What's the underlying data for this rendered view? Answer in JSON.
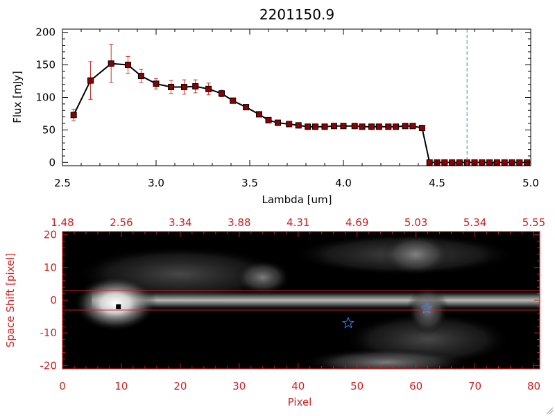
{
  "title": "2201150.9",
  "colors": {
    "line": "#000000",
    "error_bar": "#c0392b",
    "marker_fill": "#8b0000",
    "accent_red": "#cc2222",
    "dashed_line": "#3a8fb7",
    "star": "#2e86ff",
    "image_bg": "#000000"
  },
  "chart_data": [
    {
      "type": "line",
      "title": "2201150.9",
      "xlabel": "Lambda [um]",
      "ylabel": "Flux [mJy]",
      "xlim": [
        2.5,
        5.0
      ],
      "ylim": [
        -5,
        205
      ],
      "x_ticks": [
        "2.5",
        "3.0",
        "3.5",
        "4.0",
        "4.5",
        "5.0"
      ],
      "y_ticks": [
        "0",
        "50",
        "100",
        "150",
        "200"
      ],
      "vline_x": 4.66,
      "series": [
        {
          "x": [
            2.56,
            2.65,
            2.76,
            2.85,
            2.92,
            3.0,
            3.08,
            3.15,
            3.21,
            3.28,
            3.35,
            3.41,
            3.48,
            3.55,
            3.6,
            3.65,
            3.71,
            3.76,
            3.81,
            3.85,
            3.9,
            3.95,
            4.0,
            4.06,
            4.1,
            4.15,
            4.19,
            4.24,
            4.28,
            4.33,
            4.37,
            4.42,
            4.46,
            4.5,
            4.54,
            4.58,
            4.62,
            4.66,
            4.7,
            4.74,
            4.78,
            4.82,
            4.86,
            4.9,
            4.94,
            4.98
          ],
          "y": [
            73,
            126,
            152,
            150,
            133,
            121,
            116,
            116,
            117,
            113,
            106,
            95,
            85,
            74,
            65,
            61,
            59,
            57,
            55,
            55,
            55,
            56,
            56,
            56,
            55,
            55,
            55,
            55,
            55,
            56,
            56,
            53,
            0,
            0,
            0,
            0,
            0,
            0,
            0,
            0,
            0,
            0,
            0,
            0,
            0,
            0
          ],
          "err": [
            9,
            29,
            29,
            13,
            10,
            8,
            10,
            11,
            10,
            9,
            5,
            4,
            4,
            3,
            3,
            2,
            2,
            2,
            2,
            2,
            2,
            2,
            2,
            2,
            2,
            2,
            2,
            2,
            2,
            2,
            2,
            2,
            0,
            0,
            0,
            0,
            0,
            0,
            0,
            0,
            0,
            0,
            0,
            0,
            0,
            0
          ]
        }
      ]
    },
    {
      "type": "heatmap",
      "xlabel": "Pixel",
      "ylabel": "Space Shift [pixel]",
      "xlim": [
        0,
        81
      ],
      "ylim": [
        -21,
        21
      ],
      "x_ticks": [
        "0",
        "10",
        "20",
        "30",
        "40",
        "50",
        "60",
        "70",
        "80"
      ],
      "y_ticks": [
        "-20",
        "-10",
        "0",
        "10",
        "20"
      ],
      "top_x_ticks": [
        "1.48",
        "2.56",
        "3.34",
        "3.88",
        "4.31",
        "4.69",
        "5.03",
        "5.34",
        "5.55"
      ],
      "hlines": [
        3,
        -3
      ],
      "marker_square": [
        9.5,
        -2
      ],
      "stars": [
        [
          48.5,
          -7
        ],
        [
          61.8,
          -2.5
        ]
      ]
    }
  ]
}
